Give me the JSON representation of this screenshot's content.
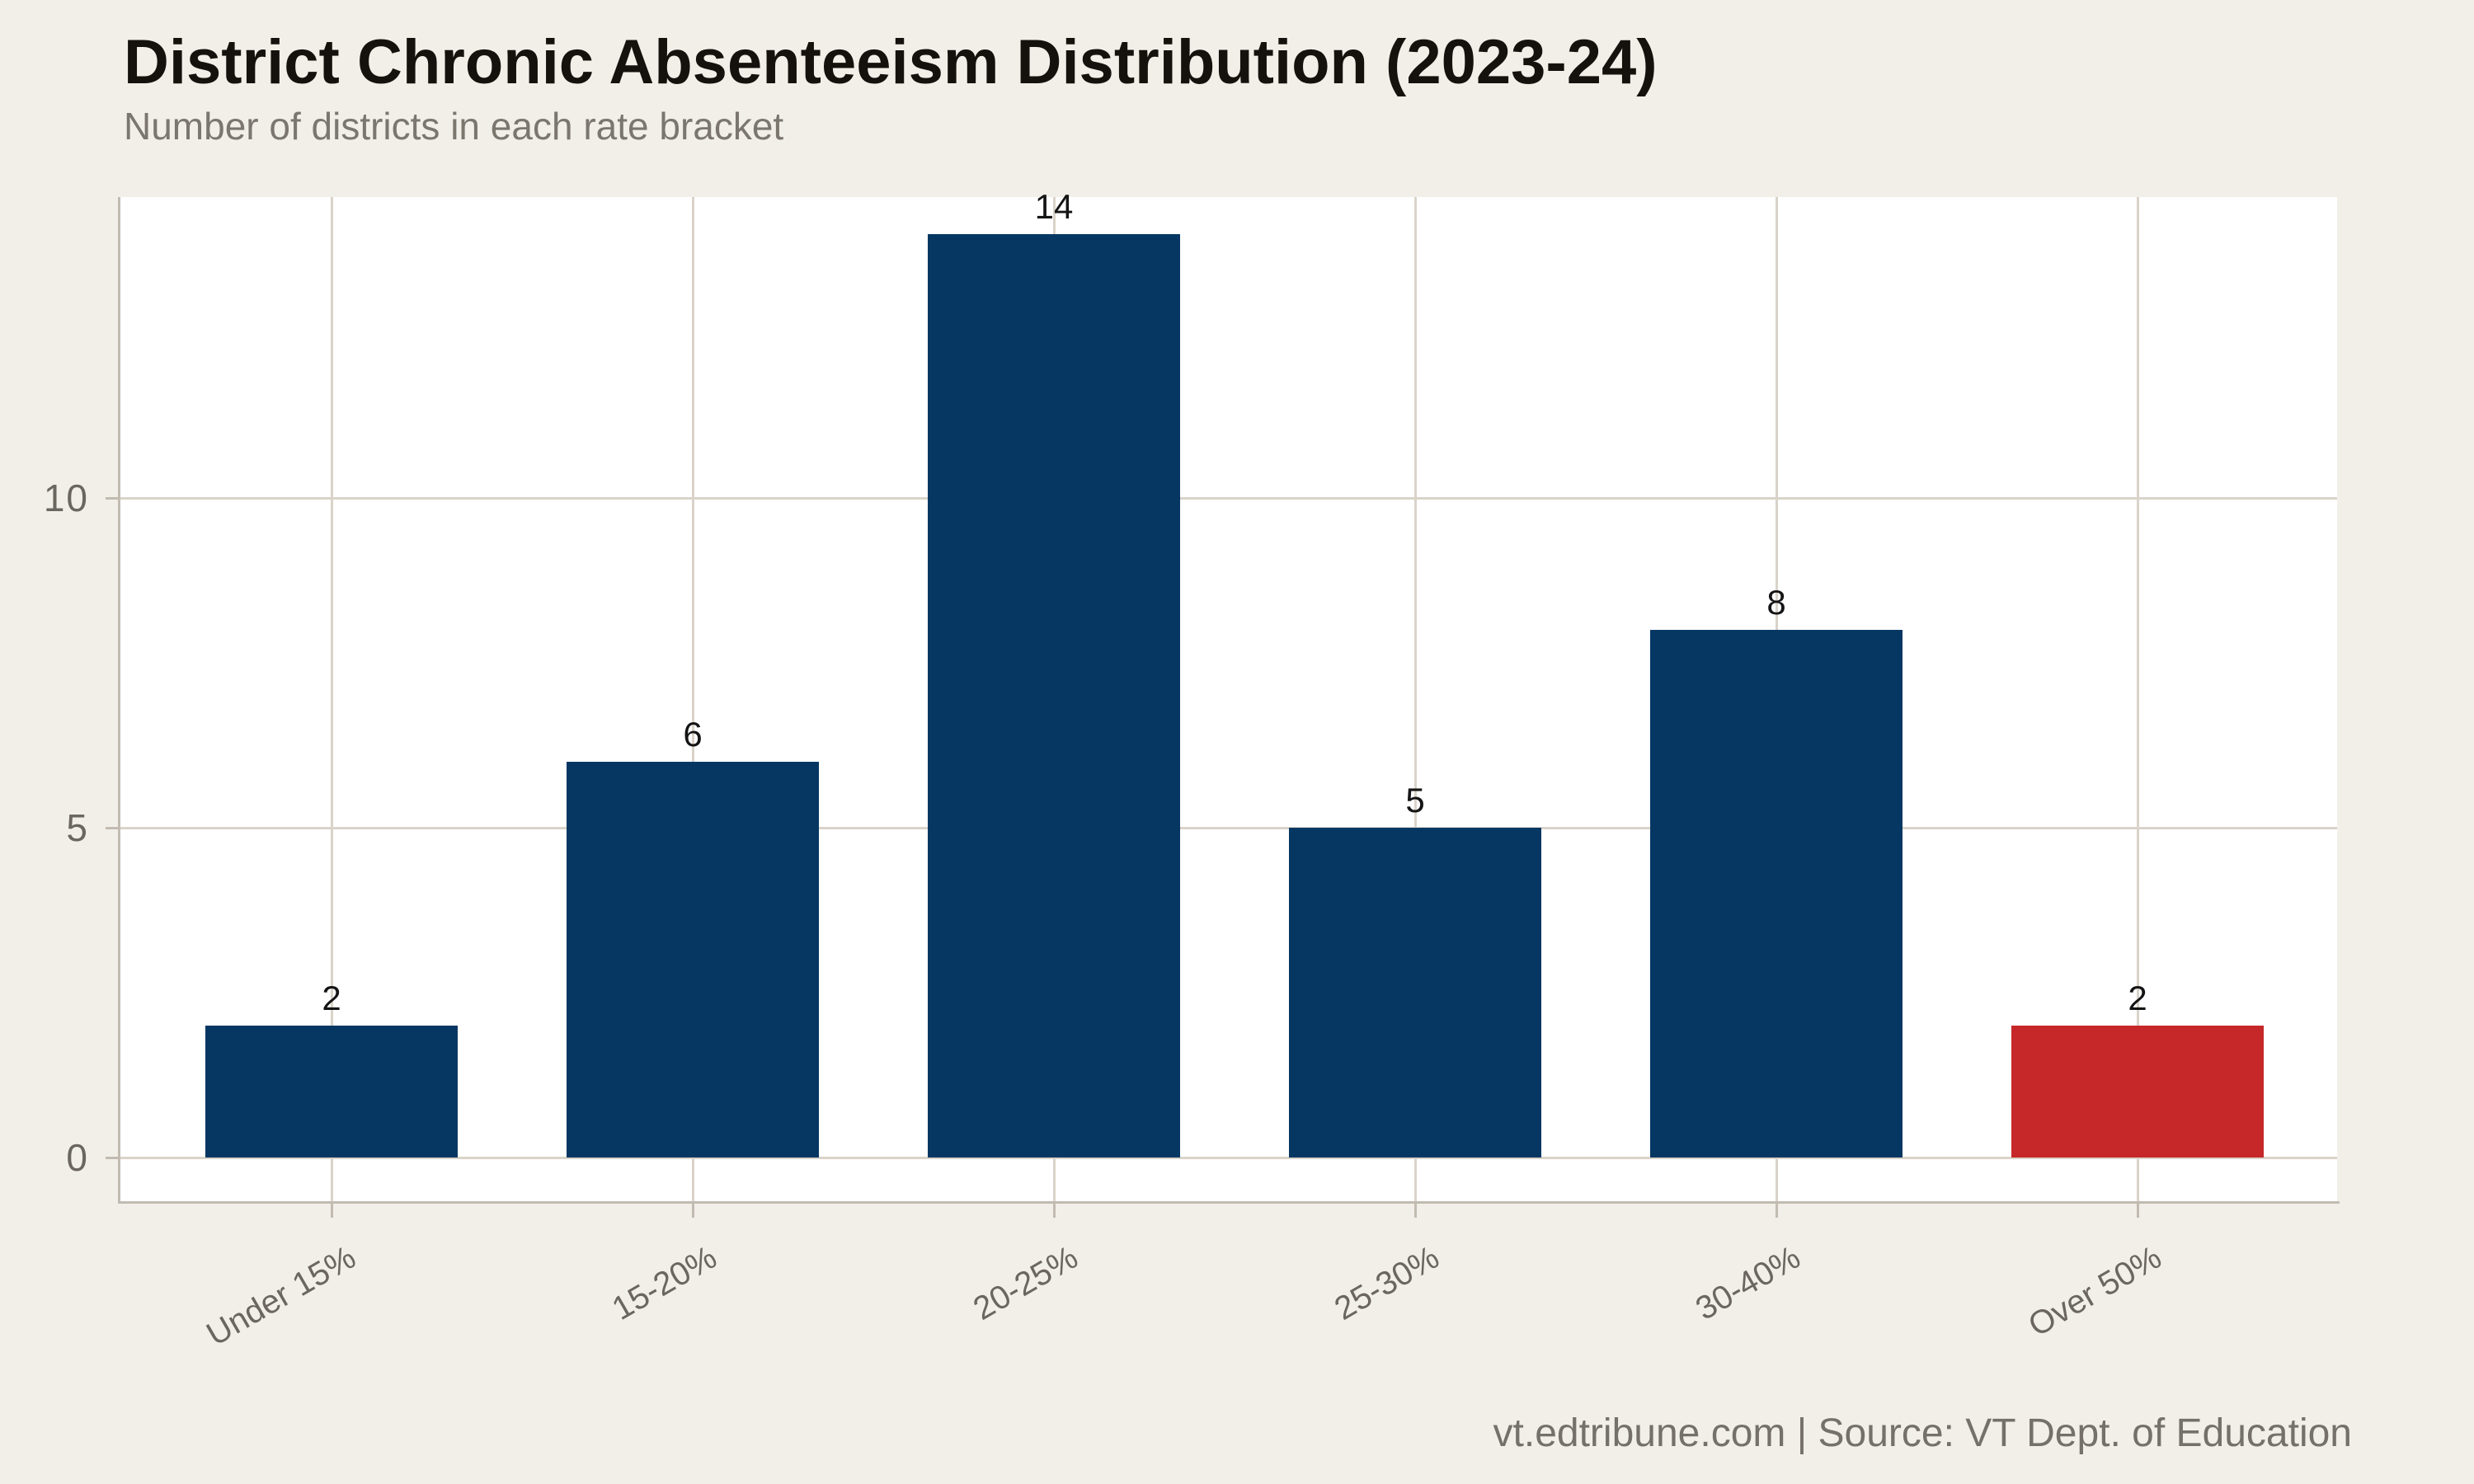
{
  "chart_data": {
    "type": "bar",
    "title": "District Chronic Absenteeism Distribution (2023-24)",
    "subtitle": "Number of districts in each rate bracket",
    "source_note": "vt.edtribune.com | Source: VT Dept. of Education",
    "categories": [
      "Under 15%",
      "15-20%",
      "20-25%",
      "25-30%",
      "30-40%",
      "Over 50%"
    ],
    "values": [
      2,
      6,
      14,
      5,
      8,
      2
    ],
    "bar_colors": [
      "#063763",
      "#063763",
      "#063763",
      "#063763",
      "#063763",
      "#c62829"
    ],
    "y_ticks": [
      0,
      5,
      10
    ],
    "ylim": [
      0,
      14.6
    ],
    "xlabel": "",
    "ylabel": "",
    "grid": "on",
    "x_tick_angle": -30,
    "legend": "none",
    "colors": {
      "background": "#f2efe9",
      "plot_background": "#ffffff",
      "gridline": "#d9d3c9",
      "axis_line": "#c1bbb1",
      "bar_default": "#063763",
      "bar_highlight": "#c62829",
      "title_text": "#15120e",
      "subtitle_text": "#7b766e",
      "axis_text": "#6b665e",
      "value_label_text": "#141414",
      "footer_text": "#75706a"
    }
  }
}
